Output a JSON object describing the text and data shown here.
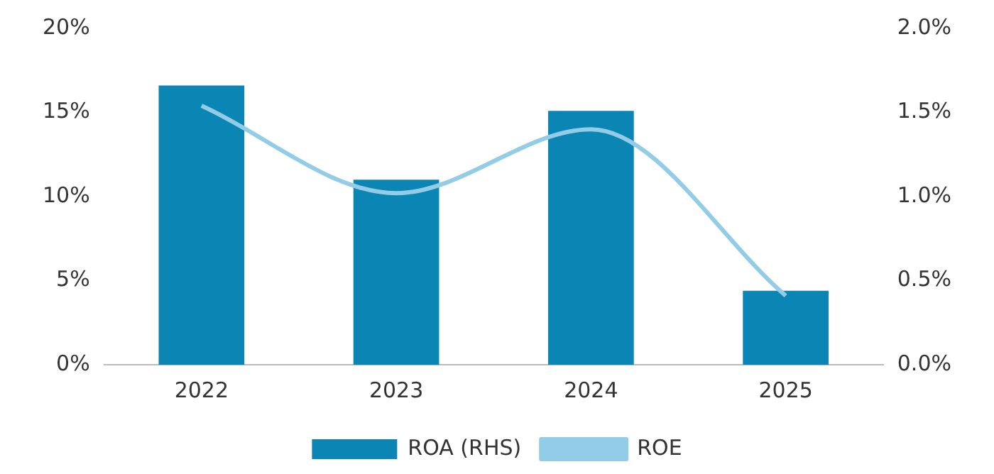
{
  "chart_data": {
    "type": "bar",
    "categories": [
      "2022",
      "2023",
      "2024",
      "2025"
    ],
    "series": [
      {
        "name": "ROA (RHS)",
        "axis": "y2",
        "color": "#0b86b4",
        "values": [
          1.66,
          1.1,
          1.51,
          0.44
        ]
      },
      {
        "name": "ROE",
        "type": "line",
        "color": "#93cce6",
        "values": [
          15.4,
          10.2,
          14.0,
          4.1
        ]
      }
    ],
    "ylim": [
      0,
      20
    ],
    "yticks": [
      {
        "value": 0,
        "label": "0%"
      },
      {
        "value": 5,
        "label": "5%"
      },
      {
        "value": 10,
        "label": "10%"
      },
      {
        "value": 15,
        "label": "15%"
      },
      {
        "value": 20,
        "label": "20%"
      }
    ],
    "y2lim": [
      0,
      2
    ],
    "y2ticks": [
      {
        "value": 0,
        "label": "0.0%"
      },
      {
        "value": 0.5,
        "label": "0.5%"
      },
      {
        "value": 1,
        "label": "1.0%"
      },
      {
        "value": 1.5,
        "label": "1.5%"
      },
      {
        "value": 2,
        "label": "2.0%"
      }
    ],
    "grid": false,
    "legend": "bottom",
    "marker": "none",
    "line_style": "solid"
  }
}
